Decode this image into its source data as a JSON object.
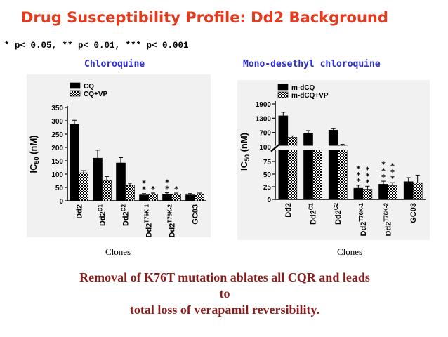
{
  "slide": {
    "title": "Drug Susceptibility Profile: Dd2 Background",
    "significance_note": "* p< 0.05, ** p< 0.01, *** p< 0.001",
    "conclusion_lines": [
      "Removal of K76T mutation ablates all CQR and leads",
      "to",
      "total loss of verapamil reversibility."
    ],
    "colors": {
      "title": "#e53a1e",
      "chart_title": "#2b2bd6",
      "conclusion": "#8b1c1c",
      "panel_bg": "#f1f1f1"
    }
  },
  "chart_data": [
    {
      "type": "bar",
      "title": "Chloroquine",
      "xlabel": "Clones",
      "ylabel": "IC50 (nM)",
      "ylabel_main": "IC",
      "ylabel_sub": "50",
      "ylabel_rest": " (nM)",
      "ylim": [
        0,
        350
      ],
      "yticks": [
        0,
        50,
        100,
        150,
        200,
        250,
        300,
        350
      ],
      "categories": [
        "Dd2",
        "Dd2",
        "Dd2",
        "Dd2",
        "Dd2",
        "GC03"
      ],
      "category_superscripts": [
        "",
        "C1",
        "C2",
        "T76K-1",
        "T76K-2",
        ""
      ],
      "series": [
        {
          "name": "CQ",
          "pattern": "solid",
          "values": [
            287,
            160,
            142,
            22,
            25,
            22
          ],
          "errors": [
            15,
            30,
            20,
            5,
            5,
            5
          ]
        },
        {
          "name": "CQ+VP",
          "pattern": "checker",
          "values": [
            105,
            76,
            58,
            25,
            25,
            25
          ],
          "errors": [
            8,
            15,
            8,
            4,
            4,
            4
          ]
        }
      ],
      "significance": [
        {
          "category": 3,
          "series": 0,
          "label": "**"
        },
        {
          "category": 3,
          "series": 1,
          "label": "*"
        },
        {
          "category": 4,
          "series": 0,
          "label": "**"
        },
        {
          "category": 4,
          "series": 1,
          "label": "*"
        }
      ],
      "legend_position": "top-left"
    },
    {
      "type": "bar",
      "title": "Mono-desethyl chloroquine",
      "xlabel": "Clones",
      "ylabel": "IC50 (nM)",
      "ylabel_main": "IC",
      "ylabel_sub": "50",
      "ylabel_rest": " (nM)",
      "axis_break": true,
      "ylim_lower": [
        0,
        100
      ],
      "ylim_upper": [
        100,
        1900
      ],
      "yticks_lower": [
        0,
        25,
        50,
        75
      ],
      "yticks_upper": [
        100,
        700,
        1300,
        1900
      ],
      "categories": [
        "Dd2",
        "Dd2",
        "Dd2",
        "Dd2",
        "Dd2",
        "GC03"
      ],
      "category_superscripts": [
        "",
        "C1",
        "C2",
        "T76K-1",
        "T76K-2",
        ""
      ],
      "series": [
        {
          "name": "m-dCQ",
          "pattern": "solid",
          "values": [
            1400,
            680,
            800,
            22,
            30,
            35
          ],
          "errors": [
            150,
            100,
            60,
            6,
            6,
            8
          ]
        },
        {
          "name": "m-dCQ+VP",
          "pattern": "checker",
          "values": [
            500,
            100,
            160,
            20,
            27,
            33
          ],
          "errors": [
            60,
            6,
            40,
            6,
            6,
            15
          ]
        }
      ],
      "significance": [
        {
          "category": 3,
          "series": 0,
          "label": "***"
        },
        {
          "category": 3,
          "series": 1,
          "label": "***"
        },
        {
          "category": 4,
          "series": 0,
          "label": "***"
        },
        {
          "category": 4,
          "series": 1,
          "label": "***"
        }
      ],
      "legend_position": "top-left"
    }
  ]
}
